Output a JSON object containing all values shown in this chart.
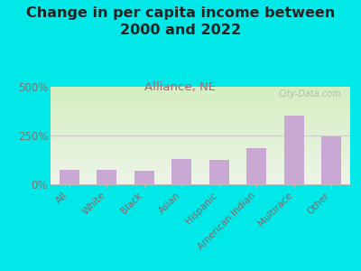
{
  "title": "Change in per capita income between\n2000 and 2022",
  "subtitle": "Alliance, NE",
  "categories": [
    "All",
    "White",
    "Black",
    "Asian",
    "Hispanic",
    "American Indian",
    "Multirace",
    "Other"
  ],
  "values": [
    75,
    72,
    68,
    130,
    125,
    185,
    350,
    245
  ],
  "bar_color": "#c9a8d4",
  "title_fontsize": 11.5,
  "subtitle_fontsize": 9.5,
  "subtitle_color": "#aa6677",
  "tick_label_color": "#886666",
  "ytick_label_color": "#777777",
  "background_outer": "#00e8e8",
  "background_plot_top": "#d4eec0",
  "background_plot_bottom": "#eef5e8",
  "watermark": "City-Data.com",
  "ylim": [
    0,
    500
  ],
  "yticks": [
    0,
    250,
    500
  ],
  "ytick_labels": [
    "0%",
    "250%",
    "500%"
  ]
}
